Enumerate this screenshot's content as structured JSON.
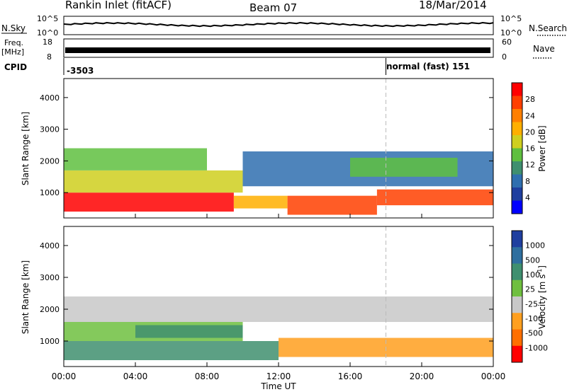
{
  "header": {
    "station": "Rankin Inlet (fitACF)",
    "beam": "Beam 07",
    "date": "18/Mar/2014"
  },
  "strips": {
    "nsky_label": "N.Sky",
    "nsearch_label": "N.Search",
    "noise_ticks_left": [
      "10^5",
      "10^0"
    ],
    "noise_ticks_right": [
      "10^5",
      "10^0"
    ],
    "freq_label_top": "Freq.",
    "freq_label_unit": "[MHz]",
    "freq_ticks": [
      "18",
      "8"
    ],
    "nave_label": "Nave",
    "nave_ticks": [
      "60",
      "0"
    ],
    "cpid_label": "CPID",
    "cpid_left": "-3503",
    "cpid_right": "normal (fast) 151",
    "cpid_change_hour": 18
  },
  "chart_data": [
    {
      "type": "heatmap",
      "name": "power",
      "ylabel": "Slant Range [km]",
      "xlabel": "Time UT",
      "xlim": [
        0,
        24
      ],
      "ylim": [
        200,
        4600
      ],
      "x_ticks": [
        "00:00",
        "04:00",
        "08:00",
        "12:00",
        "16:00",
        "20:00",
        "00:00"
      ],
      "y_ticks": [
        1000,
        2000,
        3000,
        4000
      ],
      "colorbar_label": "Power [dB]",
      "colorbar_ticks": [
        "4",
        "8",
        "12",
        "16",
        "20",
        "24",
        "28"
      ],
      "colors": [
        "#0000ff",
        "#1f3f9f",
        "#2f6faf",
        "#3f8f6f",
        "#5fbf3f",
        "#cfcf1f",
        "#ffaf00",
        "#ff7f00",
        "#ff3f00",
        "#ff0000"
      ],
      "bands": [
        {
          "t0": 0.0,
          "t1": 9.5,
          "r0": 400,
          "r1": 1000,
          "level": 9
        },
        {
          "t0": 9.5,
          "t1": 12.5,
          "r0": 500,
          "r1": 900,
          "level": 6
        },
        {
          "t0": 12.5,
          "t1": 17.5,
          "r0": 300,
          "r1": 900,
          "level": 8
        },
        {
          "t0": 17.5,
          "t1": 24.0,
          "r0": 600,
          "r1": 1100,
          "level": 8
        },
        {
          "t0": 0.0,
          "t1": 10.0,
          "r0": 1000,
          "r1": 1700,
          "level": 5
        },
        {
          "t0": 0.0,
          "t1": 8.0,
          "r0": 1700,
          "r1": 2400,
          "level": 4
        },
        {
          "t0": 10.0,
          "t1": 24.0,
          "r0": 1200,
          "r1": 2300,
          "level": 2
        },
        {
          "t0": 16.0,
          "t1": 22.0,
          "r0": 1500,
          "r1": 2100,
          "level": 4
        }
      ]
    },
    {
      "type": "heatmap",
      "name": "velocity",
      "ylabel": "Slant Range [km]",
      "xlabel": "Time UT",
      "xlim": [
        0,
        24
      ],
      "ylim": [
        200,
        4600
      ],
      "x_ticks": [
        "00:00",
        "04:00",
        "08:00",
        "12:00",
        "16:00",
        "20:00",
        "00:00"
      ],
      "y_ticks": [
        1000,
        2000,
        3000,
        4000
      ],
      "colorbar_label": "Velocity [m s^-1]",
      "colorbar_ticks": [
        "1000",
        "500",
        "100",
        "25",
        "-25",
        "-100",
        "-500",
        "-1000"
      ],
      "colors": [
        "#1f3f9f",
        "#2f6f9f",
        "#3f8f6f",
        "#6fbf3f",
        "#c8c8c8",
        "#ff9f1f",
        "#ff6f00",
        "#ff0000"
      ],
      "bands": [
        {
          "t0": 0.0,
          "t1": 12.0,
          "r0": 400,
          "r1": 1000,
          "level": 2
        },
        {
          "t0": 12.0,
          "t1": 24.0,
          "r0": 500,
          "r1": 1100,
          "level": 5
        },
        {
          "t0": 0.0,
          "t1": 10.0,
          "r0": 1000,
          "r1": 1600,
          "level": 3
        },
        {
          "t0": 0.0,
          "t1": 24.0,
          "r0": 1600,
          "r1": 2400,
          "level": 4
        },
        {
          "t0": 4.0,
          "t1": 10.0,
          "r0": 1100,
          "r1": 1500,
          "level": 2
        }
      ]
    }
  ]
}
